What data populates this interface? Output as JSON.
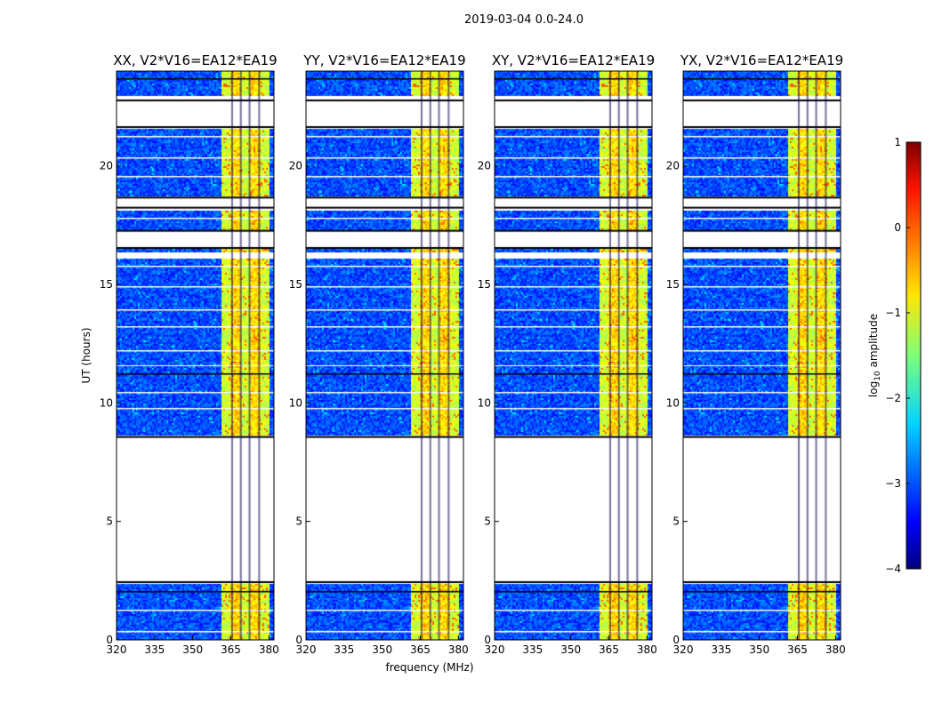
{
  "chart_data": {
    "type": "heatmap",
    "title": "2019-03-04 0.0-24.0",
    "xlabel": "frequency (MHz)",
    "ylabel": "UT (hours)",
    "xlim": [
      320,
      382
    ],
    "ylim": [
      0,
      24
    ],
    "x_ticks": [
      "320",
      "335",
      "350",
      "365",
      "380"
    ],
    "x_tick_values": [
      320,
      335,
      350,
      365,
      380
    ],
    "y_ticks": [
      "0",
      "5",
      "10",
      "15",
      "20"
    ],
    "y_tick_values": [
      0,
      5,
      10,
      15,
      20
    ],
    "colorbar": {
      "label_prefix": "log",
      "label_sub": "10",
      "label_suffix": " amplitude",
      "range": [
        -4,
        1
      ],
      "ticks": [
        "−4",
        "−3",
        "−2",
        "−1",
        "0",
        "1"
      ],
      "tick_values": [
        -4,
        -3,
        -2,
        -1,
        0,
        1
      ],
      "colormap": "jet"
    },
    "data_segments_hours": [
      [
        0.0,
        2.35
      ],
      [
        8.65,
        11.55
      ],
      [
        11.6,
        16.1
      ],
      [
        16.35,
        16.5
      ],
      [
        17.3,
        18.1
      ],
      [
        18.75,
        21.55
      ],
      [
        22.95,
        24.0
      ]
    ],
    "gap_segments_hours": [
      [
        2.4,
        8.6
      ],
      [
        16.5,
        17.3
      ],
      [
        18.2,
        18.7
      ],
      [
        21.6,
        22.8
      ]
    ],
    "bright_band_mhz": [
      361,
      380
    ],
    "panels": [
      {
        "title": "XX, V2*V16=EA12*EA19"
      },
      {
        "title": "YY, V2*V16=EA12*EA19"
      },
      {
        "title": "XY, V2*V16=EA12*EA19"
      },
      {
        "title": "YX, V2*V16=EA12*EA19"
      }
    ]
  }
}
